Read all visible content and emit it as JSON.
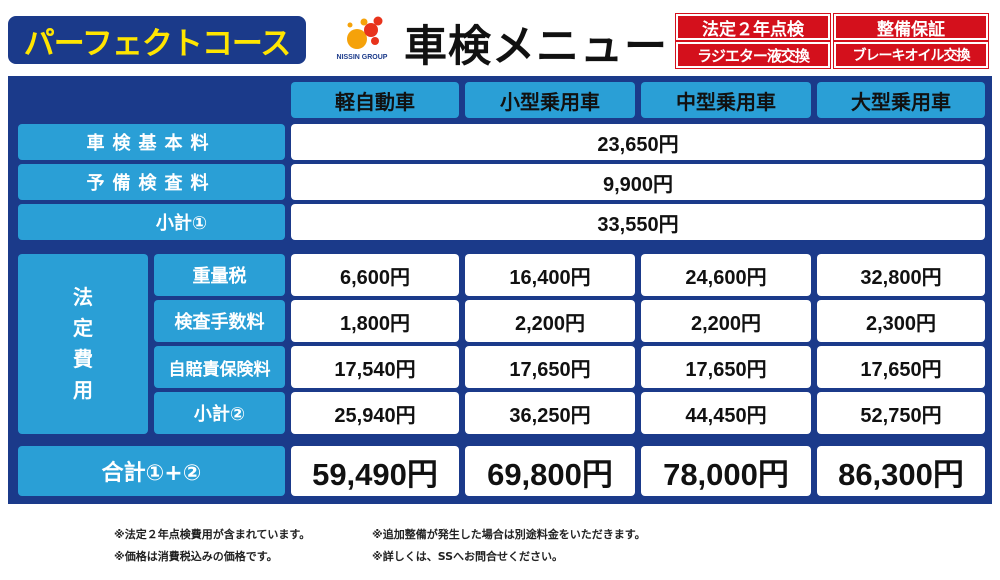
{
  "header": {
    "course_label": "パーフェクトコース",
    "logo_text": "NISSIN GROUP",
    "title": "車検メニュー",
    "tags": [
      "法定２年点検",
      "整備保証",
      "ラジエター液交換",
      "ブレーキオイル交換"
    ]
  },
  "colors": {
    "panel": "#1b3a8a",
    "header_cell": "#2a9fd6",
    "course_text": "#ffe500",
    "tag_red": "#d4101c"
  },
  "table": {
    "columns": [
      "軽自動車",
      "小型乗用車",
      "中型乗用車",
      "大型乗用車"
    ],
    "basic_fee": {
      "label": "車検基本料",
      "value": "23,650円"
    },
    "spare_fee": {
      "label": "予備検査料",
      "value": "9,900円"
    },
    "subtotal1": {
      "label": "小計①",
      "value": "33,550円"
    },
    "legal": {
      "group_label": [
        "法",
        "定",
        "費",
        "用"
      ],
      "rows": [
        {
          "label": "重量税",
          "values": [
            "6,600円",
            "16,400円",
            "24,600円",
            "32,800円"
          ]
        },
        {
          "label": "検査手数料",
          "values": [
            "1,800円",
            "2,200円",
            "2,200円",
            "2,300円"
          ]
        },
        {
          "label": "自賠責保険料",
          "values": [
            "17,540円",
            "17,650円",
            "17,650円",
            "17,650円"
          ]
        },
        {
          "label": "小計②",
          "values": [
            "25,940円",
            "36,250円",
            "44,450円",
            "52,750円"
          ]
        }
      ]
    },
    "total": {
      "label": "合計①+②",
      "values": [
        "59,490円",
        "69,800円",
        "78,000円",
        "86,300円"
      ]
    }
  },
  "notes": [
    "※法定２年点検費用が含まれています。",
    "※追加整備が発生した場合は別途料金をいただきます。",
    "※価格は消費税込みの価格です。",
    "※詳しくは、SSへお問合せください。"
  ]
}
